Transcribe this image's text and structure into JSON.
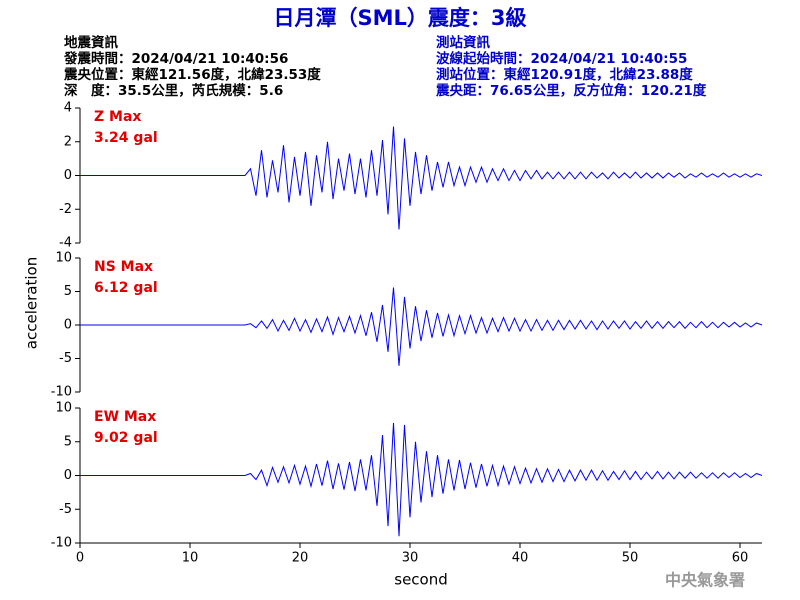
{
  "header": {
    "title": "日月潭（SML）震度：3級",
    "left": [
      "地震資訊",
      "發震時間：2024/04/21 10:40:56",
      "震央位置：東經121.56度，北緯23.53度",
      "深　度：35.5公里，芮氏規模：5.6"
    ],
    "right": [
      "測站資訊",
      "波線起始時間：2024/04/21 10:40:55",
      "測站位置：東經120.91度，北緯23.88度",
      "震央距：76.65公里，反方位角：120.21度"
    ]
  },
  "footer": "中央氣象署",
  "chart_data": [
    {
      "type": "line",
      "label": "Z Max",
      "max_label": "3.24 gal",
      "color": "#0000ff",
      "xlim": [
        0,
        62
      ],
      "ylim": [
        -4,
        4
      ],
      "yticks": [
        -4,
        -2,
        0,
        2,
        4
      ],
      "x": [
        0,
        15,
        15.5,
        16,
        16.5,
        17,
        17.5,
        18,
        18.5,
        19,
        19.5,
        20,
        20.5,
        21,
        21.5,
        22,
        22.5,
        23,
        23.5,
        24,
        24.5,
        25,
        25.5,
        26,
        26.5,
        27,
        27.5,
        28,
        28.5,
        29,
        29.5,
        30,
        30.5,
        31,
        31.5,
        32,
        32.5,
        33,
        33.5,
        34,
        34.5,
        35,
        35.5,
        36,
        36.5,
        37,
        37.5,
        38,
        38.5,
        39,
        39.5,
        40,
        40.5,
        41,
        41.5,
        42,
        42.5,
        43,
        43.5,
        44,
        44.5,
        45,
        45.5,
        46,
        46.5,
        47,
        47.5,
        48,
        48.5,
        49,
        49.5,
        50,
        50.5,
        51,
        51.5,
        52,
        52.5,
        53,
        53.5,
        54,
        54.5,
        55,
        55.5,
        56,
        56.5,
        57,
        57.5,
        58,
        58.5,
        59,
        59.5,
        60,
        60.5,
        61,
        61.5,
        62
      ],
      "values": [
        0,
        0,
        0.4,
        -1.2,
        1.5,
        -1.3,
        0.9,
        -1.0,
        1.8,
        -1.6,
        1.1,
        -1.2,
        1.4,
        -1.8,
        1.2,
        -1.0,
        2.0,
        -1.4,
        1.0,
        -0.9,
        1.3,
        -1.1,
        1.0,
        -1.3,
        1.5,
        -1.2,
        2.1,
        -2.3,
        2.9,
        -3.2,
        2.2,
        -1.8,
        1.4,
        -1.1,
        1.2,
        -0.9,
        0.8,
        -0.7,
        0.8,
        -0.6,
        0.5,
        -0.6,
        0.5,
        -0.4,
        0.5,
        -0.4,
        0.4,
        -0.3,
        0.4,
        -0.3,
        0.3,
        -0.3,
        0.3,
        -0.2,
        0.3,
        -0.2,
        0.2,
        -0.2,
        0.2,
        -0.2,
        0.2,
        -0.2,
        0.2,
        -0.2,
        0.2,
        -0.15,
        0.15,
        -0.2,
        0.2,
        -0.15,
        0.15,
        -0.15,
        0.2,
        -0.15,
        0.15,
        -0.15,
        0.15,
        -0.15,
        0.15,
        -0.1,
        0.15,
        -0.15,
        0.1,
        -0.1,
        0.15,
        -0.1,
        0.1,
        -0.1,
        0.15,
        -0.1,
        0.1,
        -0.1,
        0.1,
        -0.1,
        0.1,
        0
      ]
    },
    {
      "type": "line",
      "label": "NS Max",
      "max_label": "6.12 gal",
      "color": "#0000ff",
      "ylabel": "acceleration",
      "xlim": [
        0,
        62
      ],
      "ylim": [
        -10,
        10
      ],
      "yticks": [
        -10,
        -5,
        0,
        5,
        10
      ],
      "x": [
        0,
        15,
        15.5,
        16,
        16.5,
        17,
        17.5,
        18,
        18.5,
        19,
        19.5,
        20,
        20.5,
        21,
        21.5,
        22,
        22.5,
        23,
        23.5,
        24,
        24.5,
        25,
        25.5,
        26,
        26.5,
        27,
        27.5,
        28,
        28.5,
        29,
        29.5,
        30,
        30.5,
        31,
        31.5,
        32,
        32.5,
        33,
        33.5,
        34,
        34.5,
        35,
        35.5,
        36,
        36.5,
        37,
        37.5,
        38,
        38.5,
        39,
        39.5,
        40,
        40.5,
        41,
        41.5,
        42,
        42.5,
        43,
        43.5,
        44,
        44.5,
        45,
        45.5,
        46,
        46.5,
        47,
        47.5,
        48,
        48.5,
        49,
        49.5,
        50,
        50.5,
        51,
        51.5,
        52,
        52.5,
        53,
        53.5,
        54,
        54.5,
        55,
        55.5,
        56,
        56.5,
        57,
        57.5,
        58,
        58.5,
        59,
        59.5,
        60,
        60.5,
        61,
        61.5,
        62
      ],
      "values": [
        0,
        0,
        0.2,
        -0.4,
        0.6,
        -0.5,
        0.8,
        -0.9,
        0.7,
        -0.8,
        1.0,
        -0.9,
        0.8,
        -1.1,
        0.9,
        -1.0,
        1.2,
        -1.4,
        1.1,
        -1.0,
        1.3,
        -1.2,
        1.4,
        -1.6,
        1.9,
        -2.5,
        3.0,
        -4.0,
        5.6,
        -6.1,
        4.2,
        -3.5,
        2.8,
        -2.4,
        2.2,
        -1.9,
        1.8,
        -1.7,
        1.5,
        -1.6,
        1.4,
        -1.3,
        1.4,
        -1.2,
        1.1,
        -1.2,
        1.0,
        -1.0,
        1.1,
        -0.9,
        1.0,
        -0.9,
        0.8,
        -0.9,
        0.8,
        -0.8,
        0.7,
        -0.8,
        0.7,
        -0.7,
        0.7,
        -0.6,
        0.7,
        -0.6,
        0.6,
        -0.7,
        0.6,
        -0.6,
        0.6,
        -0.5,
        0.6,
        -0.6,
        0.5,
        -0.5,
        0.6,
        -0.5,
        0.5,
        -0.5,
        0.5,
        -0.4,
        0.5,
        -0.5,
        0.4,
        -0.4,
        0.5,
        -0.4,
        0.4,
        -0.4,
        0.4,
        -0.3,
        0.4,
        -0.3,
        0.3,
        -0.3,
        0.3,
        0
      ]
    },
    {
      "type": "line",
      "label": "EW Max",
      "max_label": "9.02 gal",
      "color": "#0000ff",
      "xlabel": "second",
      "xlim": [
        0,
        62
      ],
      "ylim": [
        -10,
        10
      ],
      "yticks": [
        -10,
        -5,
        0,
        5,
        10
      ],
      "xticks": [
        0,
        10,
        20,
        30,
        40,
        50,
        60
      ],
      "x": [
        0,
        15,
        15.5,
        16,
        16.5,
        17,
        17.5,
        18,
        18.5,
        19,
        19.5,
        20,
        20.5,
        21,
        21.5,
        22,
        22.5,
        23,
        23.5,
        24,
        24.5,
        25,
        25.5,
        26,
        26.5,
        27,
        27.5,
        28,
        28.5,
        29,
        29.5,
        30,
        30.5,
        31,
        31.5,
        32,
        32.5,
        33,
        33.5,
        34,
        34.5,
        35,
        35.5,
        36,
        36.5,
        37,
        37.5,
        38,
        38.5,
        39,
        39.5,
        40,
        40.5,
        41,
        41.5,
        42,
        42.5,
        43,
        43.5,
        44,
        44.5,
        45,
        45.5,
        46,
        46.5,
        47,
        47.5,
        48,
        48.5,
        49,
        49.5,
        50,
        50.5,
        51,
        51.5,
        52,
        52.5,
        53,
        53.5,
        54,
        54.5,
        55,
        55.5,
        56,
        56.5,
        57,
        57.5,
        58,
        58.5,
        59,
        59.5,
        60,
        60.5,
        61,
        61.5,
        62
      ],
      "values": [
        0,
        0,
        0.3,
        -0.6,
        0.8,
        -1.5,
        1.2,
        -1.0,
        1.3,
        -1.1,
        1.5,
        -1.3,
        1.4,
        -1.6,
        1.7,
        -1.5,
        2.2,
        -2.0,
        1.8,
        -2.1,
        2.0,
        -2.3,
        2.4,
        -2.2,
        3.0,
        -4.5,
        6.0,
        -7.5,
        7.8,
        -9.0,
        7.5,
        -6.2,
        5.0,
        -4.0,
        3.6,
        -3.2,
        3.0,
        -2.7,
        2.4,
        -2.2,
        2.3,
        -2.0,
        1.9,
        -1.8,
        1.7,
        -1.6,
        1.5,
        -1.5,
        1.4,
        -1.3,
        1.3,
        -1.2,
        1.1,
        -1.1,
        1.0,
        -1.0,
        1.0,
        -0.9,
        0.9,
        -0.9,
        0.8,
        -0.8,
        0.8,
        -0.7,
        0.8,
        -0.7,
        0.7,
        -0.7,
        0.6,
        -0.6,
        0.7,
        -0.6,
        0.6,
        -0.6,
        0.5,
        -0.5,
        0.6,
        -0.5,
        0.5,
        -0.5,
        0.5,
        -0.4,
        0.5,
        -0.4,
        0.4,
        -0.4,
        0.4,
        -0.4,
        0.4,
        -0.3,
        0.4,
        -0.3,
        0.3,
        -0.3,
        0.3,
        0
      ]
    }
  ]
}
